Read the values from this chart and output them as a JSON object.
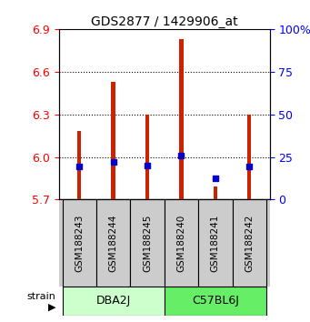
{
  "title": "GDS2877 / 1429906_at",
  "samples": [
    "GSM188243",
    "GSM188244",
    "GSM188245",
    "GSM188240",
    "GSM188241",
    "GSM188242"
  ],
  "strains": [
    "DBA2J",
    "C57BL6J"
  ],
  "strain_colors": [
    "#ccffcc",
    "#66ee66"
  ],
  "red_tops": [
    6.18,
    6.53,
    6.3,
    6.83,
    5.79,
    6.3
  ],
  "red_bottoms": [
    5.7,
    5.7,
    5.7,
    5.7,
    5.7,
    5.7
  ],
  "blue_values": [
    5.933,
    5.963,
    5.94,
    6.008,
    5.852,
    5.933
  ],
  "ylim_left": [
    5.7,
    6.9
  ],
  "ylim_right": [
    0,
    100
  ],
  "yticks_left": [
    5.7,
    6.0,
    6.3,
    6.6,
    6.9
  ],
  "yticks_right": [
    0,
    25,
    50,
    75,
    100
  ],
  "ytick_labels_right": [
    "0",
    "25",
    "50",
    "75",
    "100%"
  ],
  "bar_color": "#cc2200",
  "blue_color": "#0000cc",
  "bg_plot": "#ffffff",
  "bg_sample_box": "#cccccc",
  "bar_width": 0.12
}
